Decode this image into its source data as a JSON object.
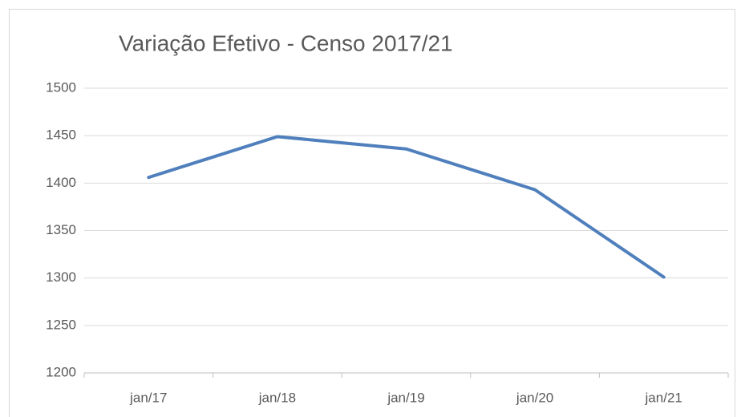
{
  "chart_data": {
    "type": "line",
    "title": "Variação Efetivo - Censo 2017/21",
    "categories": [
      "jan/17",
      "jan/18",
      "jan/19",
      "jan/20",
      "jan/21"
    ],
    "values": [
      1406,
      1449,
      1436,
      1393,
      1301
    ],
    "color": "#4f7fbc",
    "ylim": [
      1200,
      1500
    ],
    "yticks": [
      1200,
      1250,
      1300,
      1350,
      1400,
      1450,
      1500
    ],
    "grid": true
  }
}
